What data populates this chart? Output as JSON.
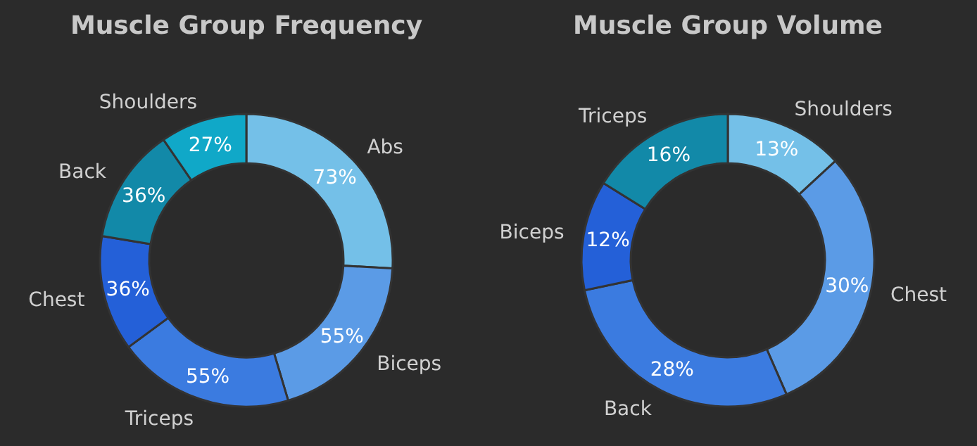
{
  "chart_data": [
    {
      "type": "donut",
      "title": "Muscle Group Frequency",
      "categories": [
        "Abs",
        "Biceps",
        "Triceps",
        "Chest",
        "Back",
        "Shoulders"
      ],
      "values": [
        73,
        55,
        55,
        36,
        36,
        27
      ],
      "colors": [
        "#74c0e8",
        "#5b9be6",
        "#3b7be0",
        "#2460d8",
        "#1289a8",
        "#10a8c8"
      ],
      "value_labels": [
        "73%",
        "55%",
        "55%",
        "36%",
        "36%",
        "27%"
      ]
    },
    {
      "type": "donut",
      "title": "Muscle Group Volume",
      "categories": [
        "Shoulders",
        "Chest",
        "Back",
        "Biceps",
        "Triceps"
      ],
      "values": [
        13,
        30,
        28,
        12,
        16
      ],
      "colors": [
        "#74c0e8",
        "#5b9be6",
        "#3b7be0",
        "#2460d8",
        "#1289a8"
      ],
      "value_labels": [
        "13%",
        "30%",
        "28%",
        "12%",
        "16%"
      ]
    }
  ]
}
